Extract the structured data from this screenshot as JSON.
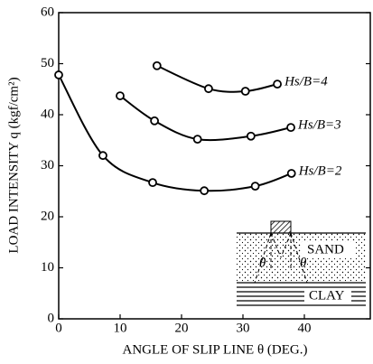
{
  "chart_data": {
    "type": "line",
    "xlabel": "ANGLE OF SLIP LINE θ (DEG.)",
    "ylabel": "LOAD INTENSITY q (kgf/cm²)",
    "xlim": [
      0,
      50
    ],
    "xticks": [
      0,
      10,
      20,
      30,
      40
    ],
    "ylim": [
      0,
      60
    ],
    "yticks": [
      0,
      10,
      20,
      30,
      40,
      50,
      60
    ],
    "series": [
      {
        "name": "Hs/B=2",
        "color": "#000000",
        "x": [
          0,
          7.2,
          15.3,
          23.7,
          32,
          37.9
        ],
        "values": [
          47.8,
          32,
          26.7,
          25.1,
          26,
          28.5
        ]
      },
      {
        "name": "Hs/B=3",
        "color": "#000000",
        "x": [
          10,
          15.6,
          22.6,
          31.3,
          37.8
        ],
        "values": [
          43.7,
          38.8,
          35.2,
          35.8,
          37.5
        ]
      },
      {
        "name": "Hs/B=4",
        "color": "#000000",
        "x": [
          16,
          24.4,
          30.4,
          35.6
        ],
        "values": [
          49.6,
          45.1,
          44.6,
          46
        ]
      }
    ],
    "inset": {
      "sand": "SAND",
      "clay": "CLAY",
      "angle_left": "θ",
      "angle_right": "θ"
    }
  }
}
